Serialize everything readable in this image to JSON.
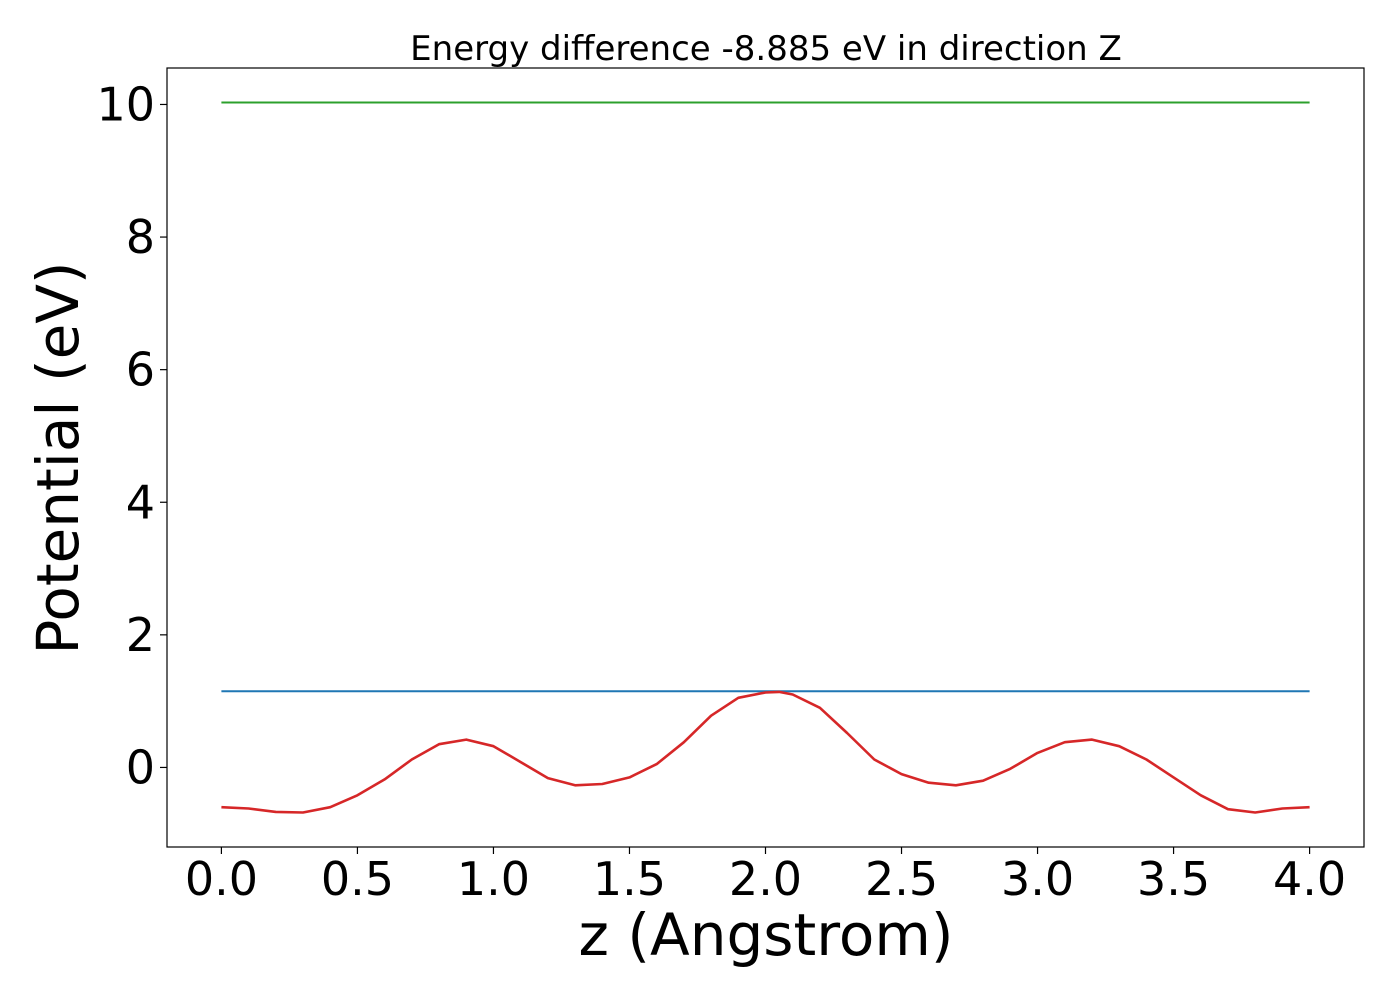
{
  "chart_data": {
    "type": "line",
    "title": "Energy difference -8.885 eV in direction Z",
    "xlabel": "z (Angstrom)",
    "ylabel": "Potential (eV)",
    "xlim": [
      -0.2,
      4.2
    ],
    "ylim": [
      -1.2,
      10.55
    ],
    "xticks": [
      0.0,
      0.5,
      1.0,
      1.5,
      2.0,
      2.5,
      3.0,
      3.5,
      4.0
    ],
    "xtick_labels": [
      "0.0",
      "0.5",
      "1.0",
      "1.5",
      "2.0",
      "2.5",
      "3.0",
      "3.5",
      "4.0"
    ],
    "yticks": [
      0,
      2,
      4,
      6,
      8,
      10
    ],
    "ytick_labels": [
      "0",
      "2",
      "4",
      "6",
      "8",
      "10"
    ],
    "grid": false,
    "legend": "none",
    "series": [
      {
        "color": "#2ca02c",
        "x": [
          0.0,
          4.0
        ],
        "y": [
          10.03,
          10.03
        ]
      },
      {
        "color": "#1f77b4",
        "x": [
          0.0,
          4.0
        ],
        "y": [
          1.15,
          1.15
        ]
      },
      {
        "color": "#d62728",
        "x": [
          0.0,
          0.1,
          0.2,
          0.3,
          0.4,
          0.5,
          0.6,
          0.7,
          0.8,
          0.9,
          1.0,
          1.1,
          1.2,
          1.3,
          1.4,
          1.5,
          1.6,
          1.7,
          1.8,
          1.9,
          2.0,
          2.05,
          2.1,
          2.2,
          2.3,
          2.4,
          2.5,
          2.6,
          2.7,
          2.8,
          2.9,
          3.0,
          3.1,
          3.2,
          3.3,
          3.4,
          3.5,
          3.6,
          3.7,
          3.8,
          3.9,
          4.0
        ],
        "y": [
          -0.6,
          -0.62,
          -0.67,
          -0.68,
          -0.6,
          -0.42,
          -0.18,
          0.12,
          0.35,
          0.42,
          0.32,
          0.08,
          -0.16,
          -0.27,
          -0.25,
          -0.15,
          0.05,
          0.38,
          0.78,
          1.05,
          1.13,
          1.14,
          1.1,
          0.9,
          0.52,
          0.12,
          -0.1,
          -0.23,
          -0.27,
          -0.2,
          -0.02,
          0.22,
          0.38,
          0.42,
          0.32,
          0.12,
          -0.15,
          -0.42,
          -0.63,
          -0.68,
          -0.62,
          -0.6
        ]
      }
    ]
  }
}
